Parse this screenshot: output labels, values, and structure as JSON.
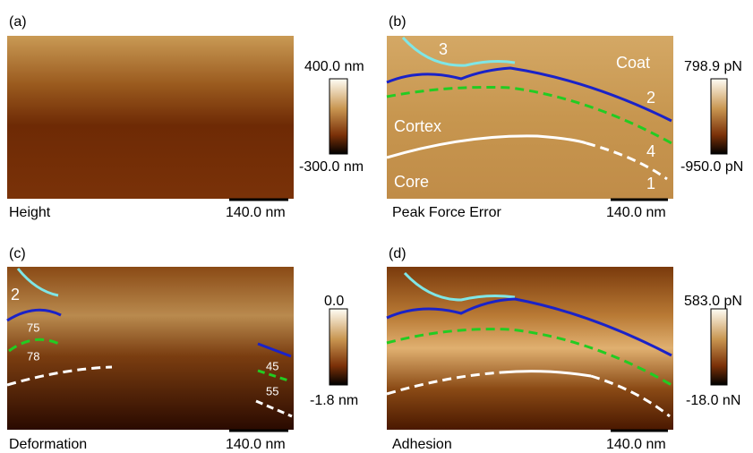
{
  "panels": [
    {
      "label": "(a)",
      "caption": "Height",
      "scale_bar": "140.0 nm",
      "colorbar": {
        "max": "400.0 nm",
        "min": "-300.0 nm"
      }
    },
    {
      "label": "(b)",
      "caption": "Peak Force Error",
      "scale_bar": "140.0 nm",
      "colorbar": {
        "max": "798.9 pN",
        "min": "-950.0 pN"
      },
      "annotations": [
        "3",
        "Coat",
        "2",
        "Cortex",
        "4",
        "Core",
        "1"
      ]
    },
    {
      "label": "(c)",
      "caption": "Deformation",
      "scale_bar": "140.0 nm",
      "colorbar": {
        "max": "0.0",
        "min": "-1.8 nm"
      },
      "annotations": [
        "2",
        "75",
        "78",
        "45",
        "55"
      ]
    },
    {
      "label": "(d)",
      "caption": "Adhesion",
      "scale_bar": "140.0 nm",
      "colorbar": {
        "max": "583.0 pN",
        "min": "-18.0 nN"
      }
    }
  ]
}
